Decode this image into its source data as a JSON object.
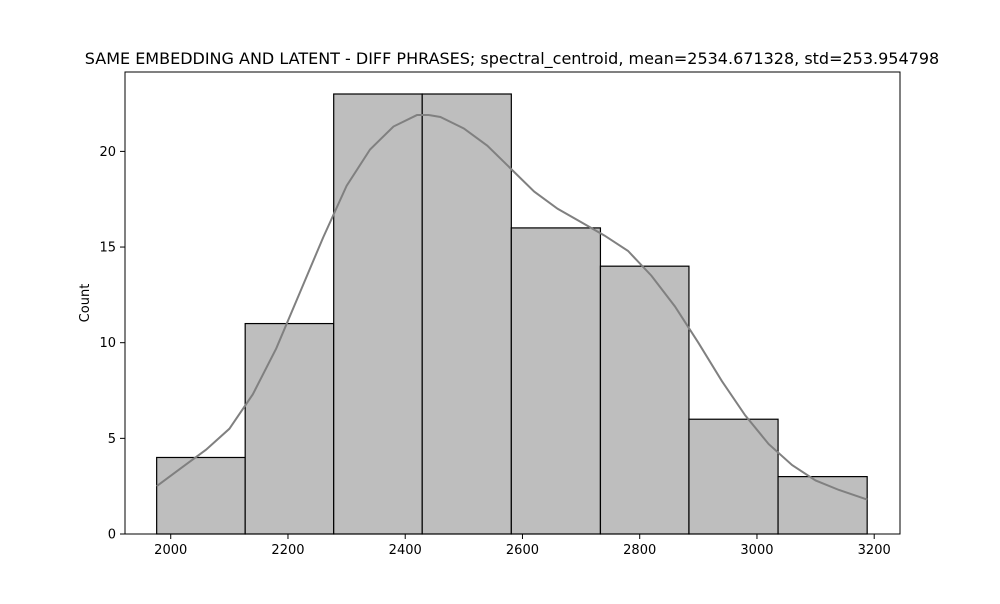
{
  "chart_data": {
    "type": "bar",
    "title": "SAME EMBEDDING AND LATENT - DIFF PHRASES; spectral_centroid, mean=2534.671328, std=253.954798",
    "xlabel": "",
    "ylabel": "Count",
    "xlim": [
      1922,
      3244
    ],
    "ylim": [
      0,
      24.15
    ],
    "x_ticks": [
      2000,
      2200,
      2400,
      2600,
      2800,
      3000,
      3200
    ],
    "y_ticks": [
      0,
      5,
      10,
      15,
      20
    ],
    "grid": false,
    "legend": "none",
    "bins": [
      {
        "start": 1976,
        "end": 2127,
        "count": 4
      },
      {
        "start": 2127,
        "end": 2278,
        "count": 11
      },
      {
        "start": 2278,
        "end": 2429,
        "count": 23
      },
      {
        "start": 2429,
        "end": 2581,
        "count": 23
      },
      {
        "start": 2581,
        "end": 2733,
        "count": 16
      },
      {
        "start": 2733,
        "end": 2884,
        "count": 14
      },
      {
        "start": 2884,
        "end": 3036,
        "count": 6
      },
      {
        "start": 3036,
        "end": 3188,
        "count": 3
      }
    ],
    "kde": {
      "x": [
        1976,
        2020,
        2060,
        2100,
        2140,
        2180,
        2220,
        2260,
        2300,
        2340,
        2380,
        2420,
        2440,
        2460,
        2500,
        2540,
        2580,
        2620,
        2660,
        2700,
        2740,
        2780,
        2820,
        2860,
        2900,
        2940,
        2980,
        3020,
        3060,
        3100,
        3140,
        3188
      ],
      "y": [
        2.5,
        3.5,
        4.4,
        5.5,
        7.3,
        9.7,
        12.6,
        15.5,
        18.2,
        20.1,
        21.3,
        21.9,
        21.9,
        21.8,
        21.2,
        20.3,
        19.1,
        17.9,
        17.0,
        16.3,
        15.6,
        14.8,
        13.5,
        11.9,
        10.0,
        8.0,
        6.2,
        4.7,
        3.6,
        2.8,
        2.3,
        1.8
      ]
    },
    "colors": {
      "bar_fill": "#bebebe",
      "bar_edge": "#000000",
      "kde_line": "#808080"
    }
  }
}
